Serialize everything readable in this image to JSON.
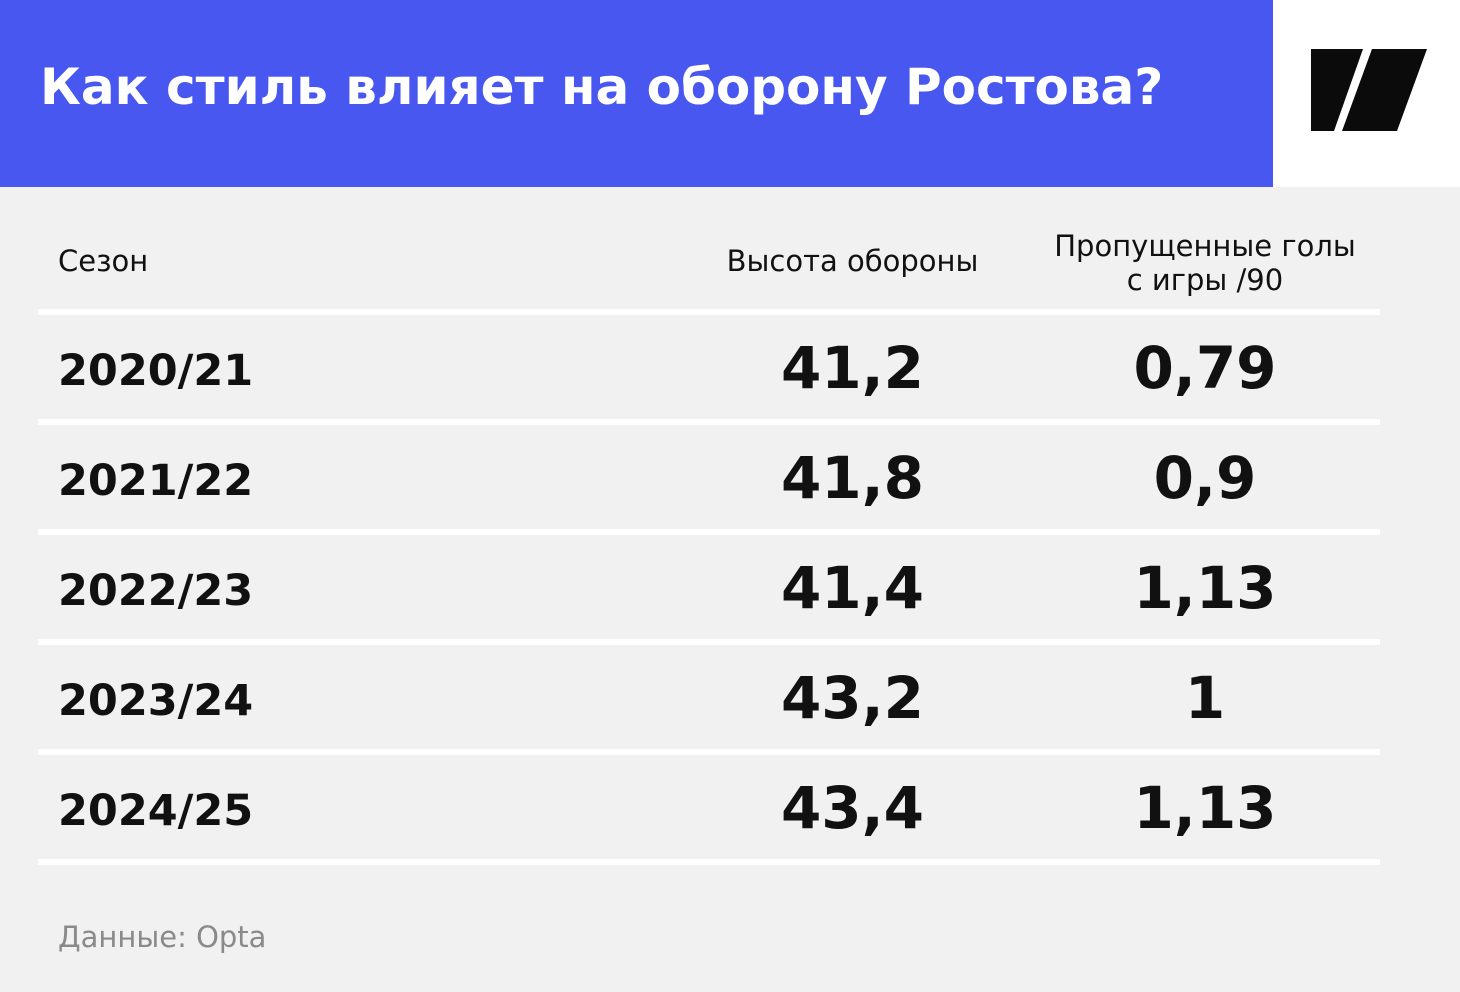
{
  "header": {
    "title": "Как стиль влияет на оборону Ростова?",
    "brand_color": "#4857ef",
    "logo_icon": "slash-logo-icon"
  },
  "table": {
    "columns": [
      "Сезон",
      "Высота обороны",
      "Пропущенные голы",
      "с игры /90"
    ],
    "rows": [
      {
        "season": "2020/21",
        "height": "41,2",
        "goals": "0,79"
      },
      {
        "season": "2021/22",
        "height": "41,8",
        "goals": "0,9"
      },
      {
        "season": "2022/23",
        "height": "41,4",
        "goals": "1,13"
      },
      {
        "season": "2023/24",
        "height": "43,2",
        "goals": "1"
      },
      {
        "season": "2024/25",
        "height": "43,4",
        "goals": "1,13"
      }
    ]
  },
  "footer": {
    "source": "Данные: Opta"
  },
  "chart_data": {
    "type": "table",
    "title": "Как стиль влияет на оборону Ростова?",
    "columns": [
      "Сезон",
      "Высота обороны",
      "Пропущенные голы с игры /90"
    ],
    "categories": [
      "2020/21",
      "2021/22",
      "2022/23",
      "2023/24",
      "2024/25"
    ],
    "series": [
      {
        "name": "Высота обороны",
        "values": [
          41.2,
          41.8,
          41.4,
          43.2,
          43.4
        ]
      },
      {
        "name": "Пропущенные голы с игры /90",
        "values": [
          0.79,
          0.9,
          1.13,
          1,
          1.13
        ]
      }
    ],
    "source": "Данные: Opta"
  }
}
